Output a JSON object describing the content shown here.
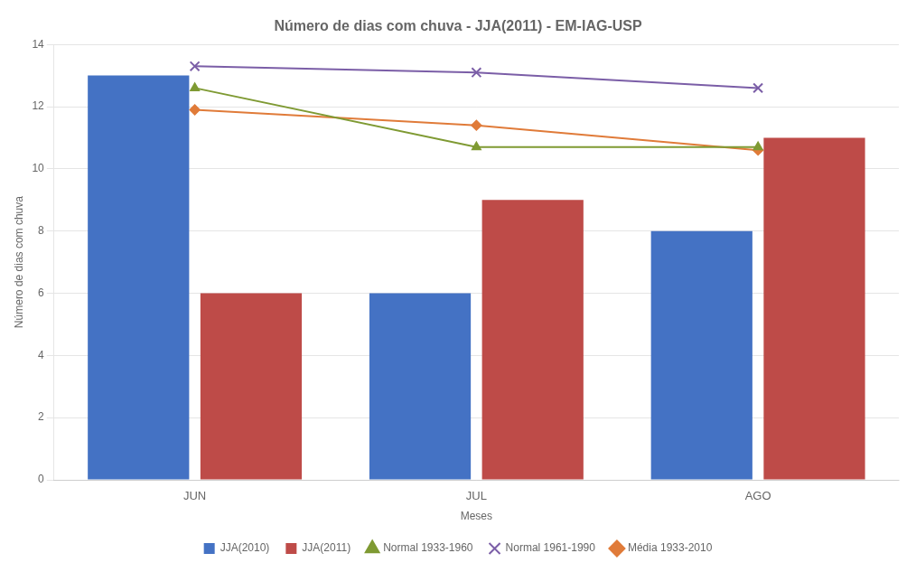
{
  "chart_data": {
    "type": "bar",
    "title": "Número de dias com chuva - JJA(2011) - EM-IAG-USP",
    "xlabel": "Meses",
    "ylabel": "Número de dias com chuva",
    "categories": [
      "JUN",
      "JUL",
      "AGO"
    ],
    "series": [
      {
        "name": "JJA(2010)",
        "type": "bar",
        "color": "#4472C4",
        "values": [
          13,
          6,
          8
        ]
      },
      {
        "name": "JJA(2011)",
        "type": "bar",
        "color": "#BE4B48",
        "values": [
          6,
          9,
          11
        ]
      },
      {
        "name": "Normal 1933-1960",
        "type": "line",
        "color": "#7F9A33",
        "marker": "triangle",
        "values": [
          12.6,
          10.7,
          10.7
        ]
      },
      {
        "name": "Normal 1961-1990",
        "type": "line",
        "color": "#7B5EA7",
        "marker": "x",
        "values": [
          13.3,
          13.1,
          12.6
        ]
      },
      {
        "name": "Média 1933-2010",
        "type": "line",
        "color": "#E07B39",
        "marker": "diamond",
        "values": [
          11.9,
          11.4,
          10.6
        ]
      }
    ],
    "ylim": [
      0,
      14
    ],
    "yticks": [
      0,
      2,
      4,
      6,
      8,
      10,
      12,
      14
    ],
    "grid": true,
    "legend": "bottom"
  }
}
